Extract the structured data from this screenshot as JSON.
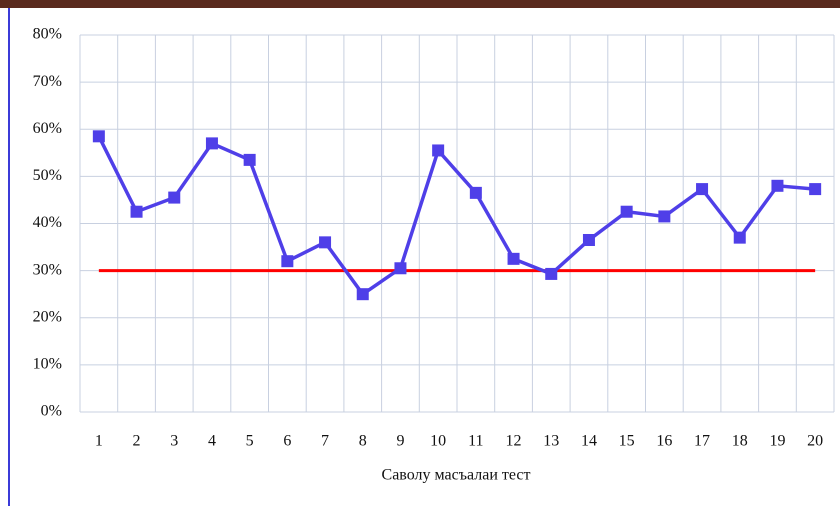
{
  "chart_data": {
    "type": "line",
    "x_label": "Саволу масъалаи тест",
    "categories": [
      "1",
      "2",
      "3",
      "4",
      "5",
      "6",
      "7",
      "8",
      "9",
      "10",
      "11",
      "12",
      "13",
      "14",
      "15",
      "16",
      "17",
      "18",
      "19",
      "20"
    ],
    "series": [
      {
        "color": "#4f3fe8",
        "marker": "square",
        "values": [
          58.5,
          42.5,
          45.5,
          57,
          53.5,
          32,
          36,
          25,
          30.5,
          55.5,
          46.5,
          32.5,
          29.3,
          36.5,
          42.5,
          41.5,
          47.3,
          37,
          48,
          47.3
        ]
      },
      {
        "color": "#ff0000",
        "values": [
          30,
          30,
          30,
          30,
          30,
          30,
          30,
          30,
          30,
          30,
          30,
          30,
          30,
          30,
          30,
          30,
          30,
          30,
          30,
          30
        ]
      }
    ],
    "ylim": [
      0,
      80
    ],
    "yticks": [
      {
        "value": 0,
        "label": "0%"
      },
      {
        "value": 10,
        "label": "10%"
      },
      {
        "value": 20,
        "label": "20%"
      },
      {
        "value": 30,
        "label": "30%"
      },
      {
        "value": 40,
        "label": "40%"
      },
      {
        "value": 50,
        "label": "50%"
      },
      {
        "value": 60,
        "label": "60%"
      },
      {
        "value": 70,
        "label": "70%"
      },
      {
        "value": 80,
        "label": "80%"
      }
    ],
    "grid": true
  }
}
